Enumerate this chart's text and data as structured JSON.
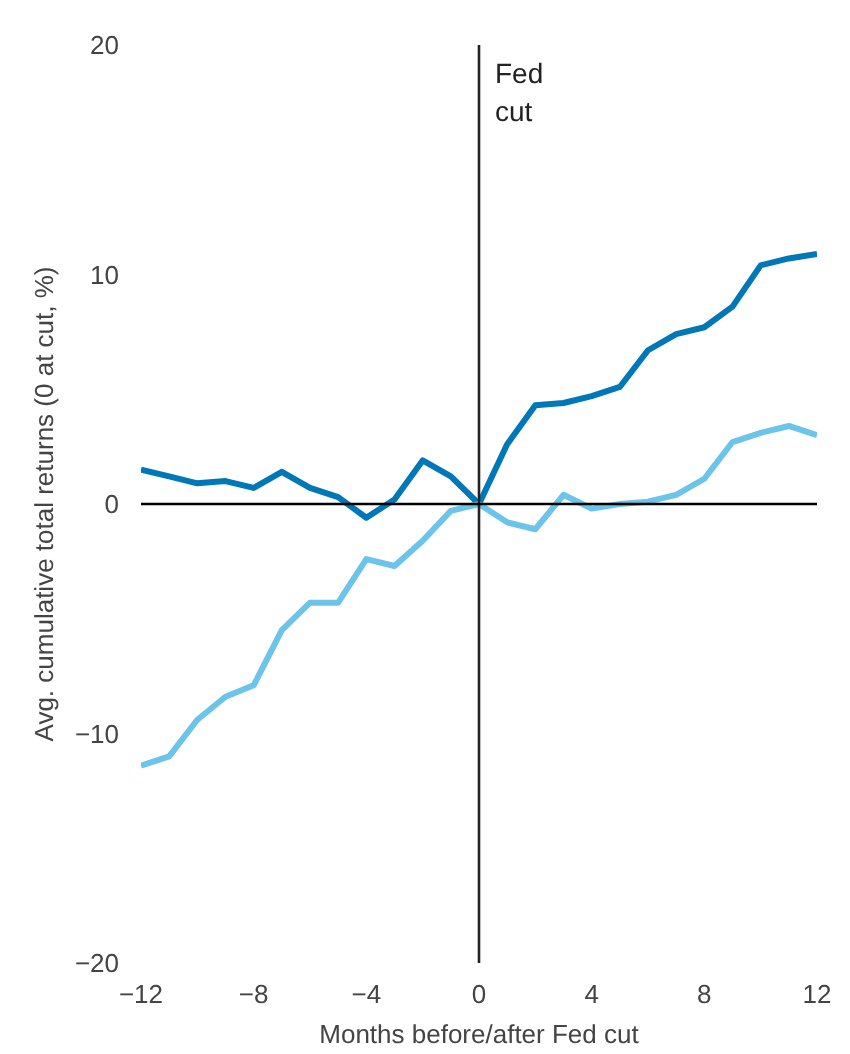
{
  "chart_data": {
    "type": "line",
    "xlabel": "Months before/after Fed cut",
    "ylabel": "Avg. cumulative total returns (0 at cut, %)",
    "x": [
      -12,
      -11,
      -10,
      -9,
      -8,
      -7,
      -6,
      -5,
      -4,
      -3,
      -2,
      -1,
      0,
      1,
      2,
      3,
      4,
      5,
      6,
      7,
      8,
      9,
      10,
      11,
      12
    ],
    "series": [
      {
        "color": "#0077b6",
        "values": [
          1.5,
          1.2,
          0.9,
          1.0,
          0.7,
          1.4,
          0.7,
          0.3,
          -0.6,
          0.2,
          1.9,
          1.2,
          0,
          2.6,
          4.3,
          4.4,
          4.7,
          5.1,
          6.7,
          7.4,
          7.7,
          8.6,
          10.4,
          10.7,
          10.9
        ]
      },
      {
        "color": "#6cc4ea",
        "values": [
          -11.4,
          -11.0,
          -9.4,
          -8.4,
          -7.9,
          -5.5,
          -4.3,
          -4.3,
          -2.4,
          -2.7,
          -1.6,
          -0.3,
          0,
          -0.8,
          -1.1,
          0.4,
          -0.2,
          0.0,
          0.1,
          0.4,
          1.1,
          2.7,
          3.1,
          3.4,
          3.0
        ]
      }
    ],
    "xlim": [
      -12,
      12
    ],
    "ylim": [
      -20,
      20
    ],
    "xticks": [
      -12,
      -8,
      -4,
      0,
      4,
      8,
      12
    ],
    "yticks": [
      -20,
      -10,
      0,
      10,
      20
    ],
    "ref_lines": [
      {
        "axis": "x",
        "value": 0,
        "label": "Fed cut",
        "color": "#222222"
      },
      {
        "axis": "y",
        "value": 0,
        "color": "#000000"
      }
    ],
    "grid": false,
    "marker": "none",
    "line_style": "solid"
  }
}
